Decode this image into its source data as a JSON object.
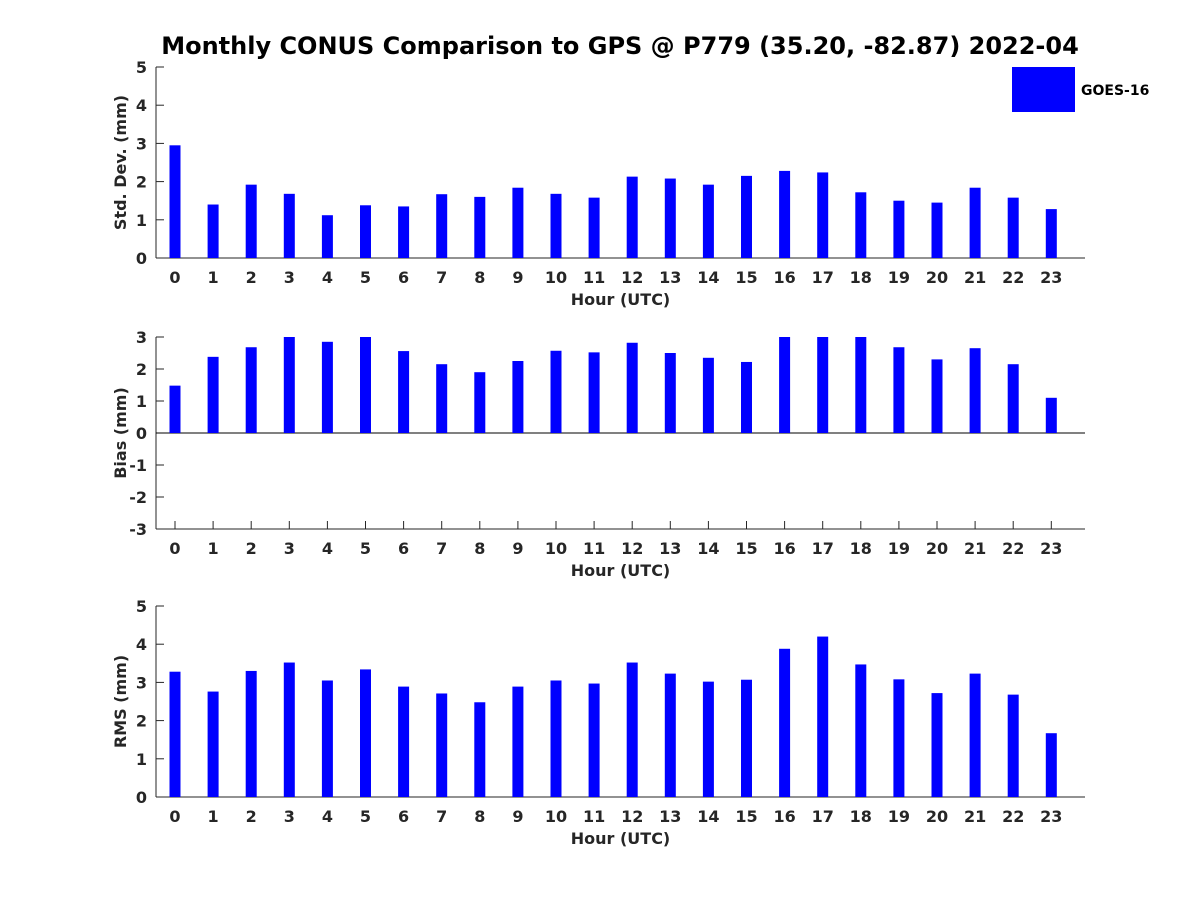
{
  "title": "Monthly CONUS Comparison to GPS @ P779 (35.20, -82.87) 2022-04",
  "legend": {
    "label": "GOES-16",
    "color": "#0000ff",
    "placement": "top-right"
  },
  "chart_data": [
    {
      "type": "bar",
      "categories": [
        "0",
        "1",
        "2",
        "3",
        "4",
        "5",
        "6",
        "7",
        "8",
        "9",
        "10",
        "11",
        "12",
        "13",
        "14",
        "15",
        "16",
        "17",
        "18",
        "19",
        "20",
        "21",
        "22",
        "23"
      ],
      "series": [
        {
          "name": "GOES-16",
          "values": [
            2.95,
            1.4,
            1.92,
            1.68,
            1.12,
            1.38,
            1.35,
            1.67,
            1.6,
            1.84,
            1.68,
            1.58,
            2.13,
            2.08,
            1.92,
            2.15,
            2.28,
            2.24,
            1.72,
            1.5,
            1.45,
            1.84,
            1.58,
            1.28
          ]
        }
      ],
      "xlabel": "Hour (UTC)",
      "ylabel": "Std. Dev. (mm)",
      "ylim": [
        0,
        5
      ],
      "yticks": [
        0,
        1,
        2,
        3,
        4,
        5
      ],
      "grid": false
    },
    {
      "type": "bar",
      "categories": [
        "0",
        "1",
        "2",
        "3",
        "4",
        "5",
        "6",
        "7",
        "8",
        "9",
        "10",
        "11",
        "12",
        "13",
        "14",
        "15",
        "16",
        "17",
        "18",
        "19",
        "20",
        "21",
        "22",
        "23"
      ],
      "series": [
        {
          "name": "GOES-16",
          "values": [
            1.48,
            2.38,
            2.68,
            3.0,
            2.85,
            3.0,
            2.56,
            2.15,
            1.9,
            2.25,
            2.57,
            2.52,
            2.82,
            2.5,
            2.35,
            2.22,
            3.0,
            3.0,
            3.0,
            2.68,
            2.3,
            2.65,
            2.15,
            1.1
          ]
        }
      ],
      "xlabel": "Hour (UTC)",
      "ylabel": "Bias (mm)",
      "ylim": [
        -3,
        3
      ],
      "yticks": [
        -3,
        -2,
        -1,
        0,
        1,
        2,
        3
      ],
      "grid": false
    },
    {
      "type": "bar",
      "categories": [
        "0",
        "1",
        "2",
        "3",
        "4",
        "5",
        "6",
        "7",
        "8",
        "9",
        "10",
        "11",
        "12",
        "13",
        "14",
        "15",
        "16",
        "17",
        "18",
        "19",
        "20",
        "21",
        "22",
        "23"
      ],
      "series": [
        {
          "name": "GOES-16",
          "values": [
            3.28,
            2.76,
            3.3,
            3.52,
            3.05,
            3.34,
            2.89,
            2.71,
            2.48,
            2.89,
            3.05,
            2.97,
            3.52,
            3.23,
            3.02,
            3.07,
            3.88,
            4.2,
            3.47,
            3.08,
            2.72,
            3.23,
            2.68,
            1.67
          ]
        }
      ],
      "xlabel": "Hour (UTC)",
      "ylabel": "RMS (mm)",
      "ylim": [
        0,
        5
      ],
      "yticks": [
        0,
        1,
        2,
        3,
        4,
        5
      ],
      "grid": false
    }
  ]
}
